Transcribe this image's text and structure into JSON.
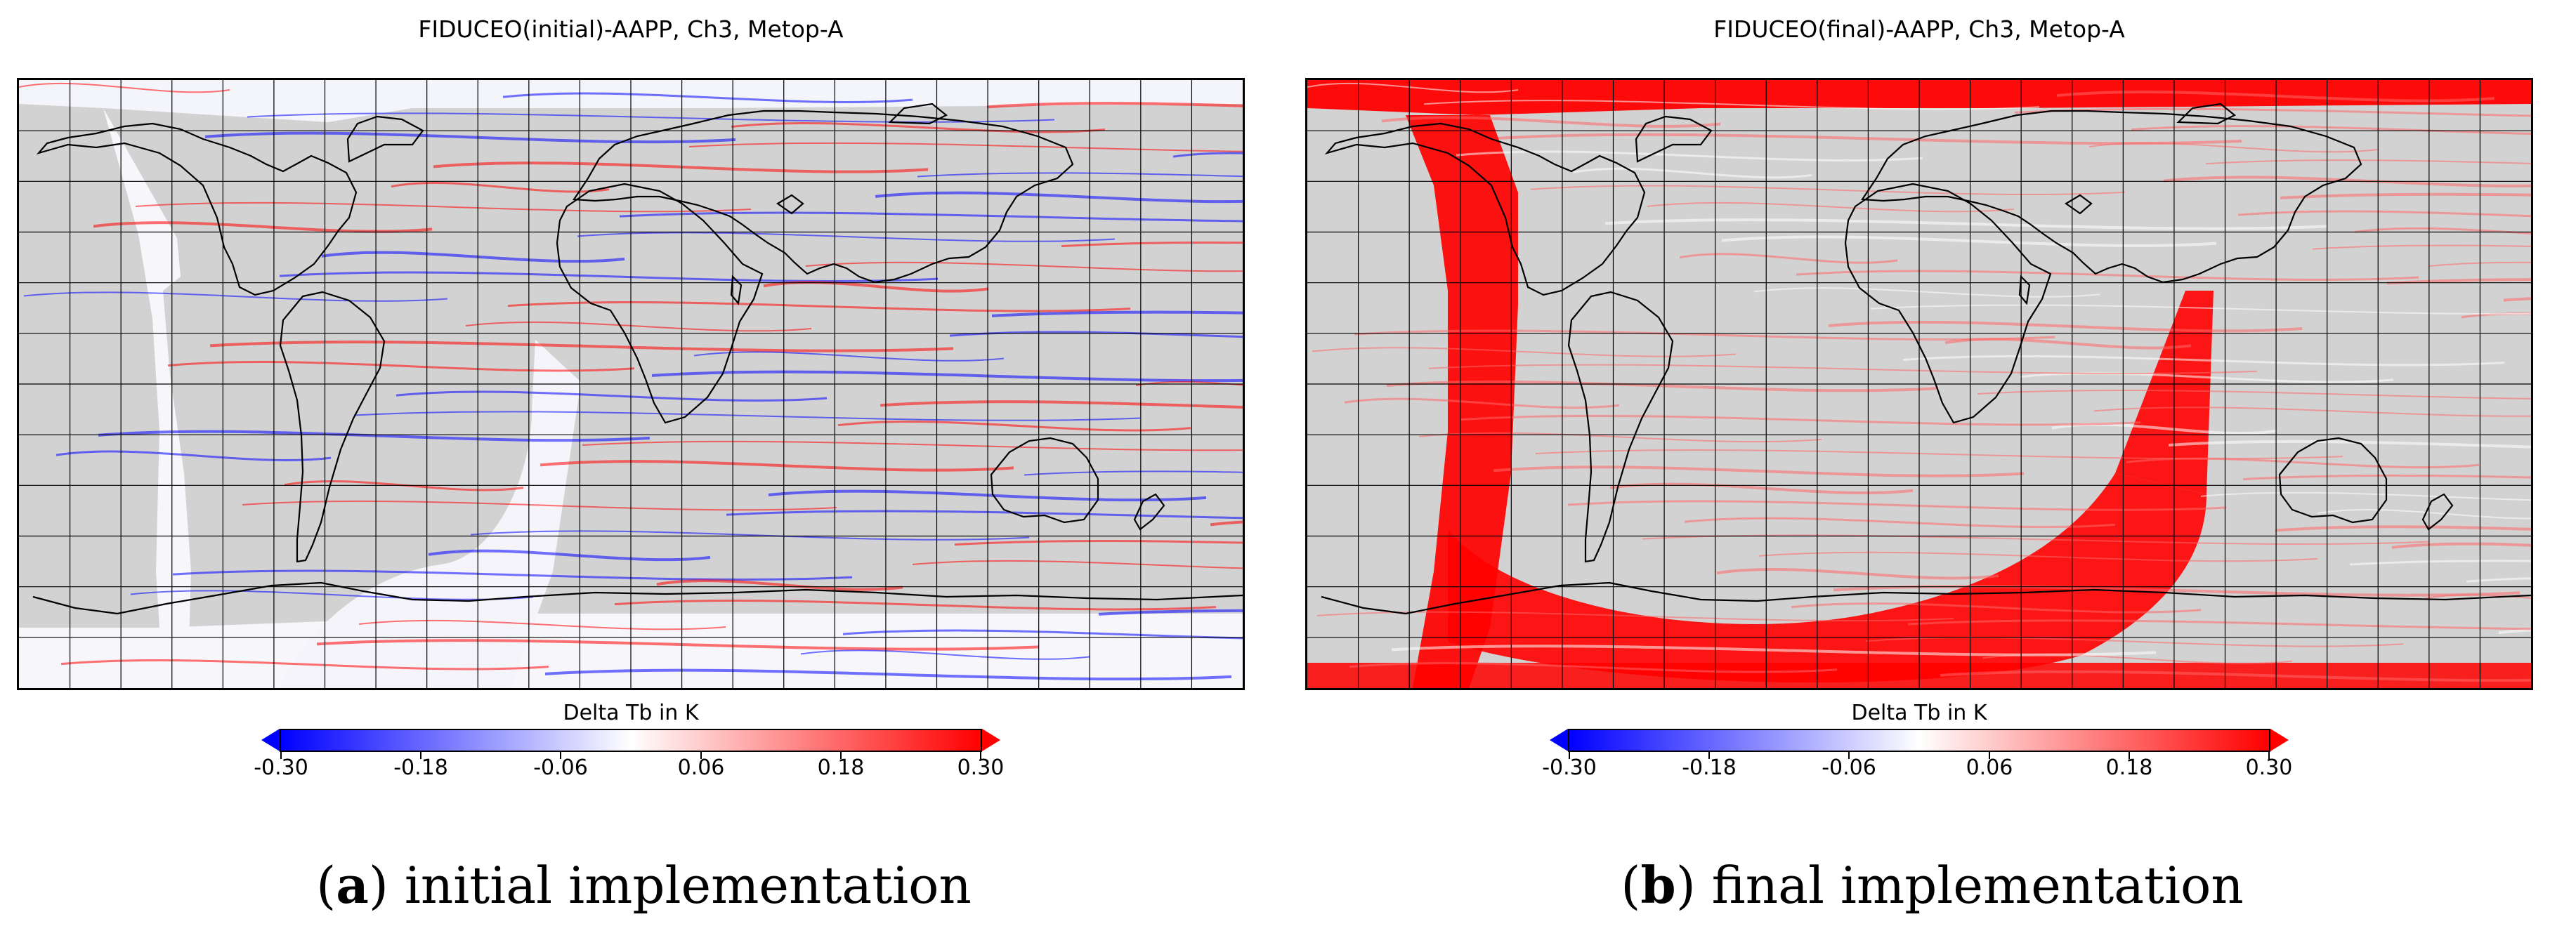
{
  "figure": {
    "panels": [
      {
        "id": "a",
        "title": "FIDUCEO(initial)-AAPP, Ch3, Metop-A",
        "variant": "initial",
        "colorbar": {
          "label": "Delta Tb in K",
          "ticks": [
            "-0.30",
            "-0.18",
            "-0.06",
            "0.06",
            "0.18",
            "0.30"
          ],
          "vmin": -0.3,
          "vmax": 0.3,
          "low_color": "#0000ff",
          "mid_color": "#ffffff",
          "high_color": "#ff0000"
        },
        "caption_letter": "a",
        "caption_open": "(",
        "caption_close": ") initial implementation"
      },
      {
        "id": "b",
        "title": "FIDUCEO(final)-AAPP, Ch3, Metop-A",
        "variant": "final",
        "colorbar": {
          "label": "Delta Tb in K",
          "ticks": [
            "-0.30",
            "-0.18",
            "-0.06",
            "0.06",
            "0.18",
            "0.30"
          ],
          "vmin": -0.3,
          "vmax": 0.3,
          "low_color": "#0000ff",
          "mid_color": "#ffffff",
          "high_color": "#ff0000"
        },
        "caption_letter": "b",
        "caption_open": "(",
        "caption_close": ") final implementation"
      }
    ],
    "land_color": "#d2d2d2",
    "grid_color": "#000000"
  }
}
